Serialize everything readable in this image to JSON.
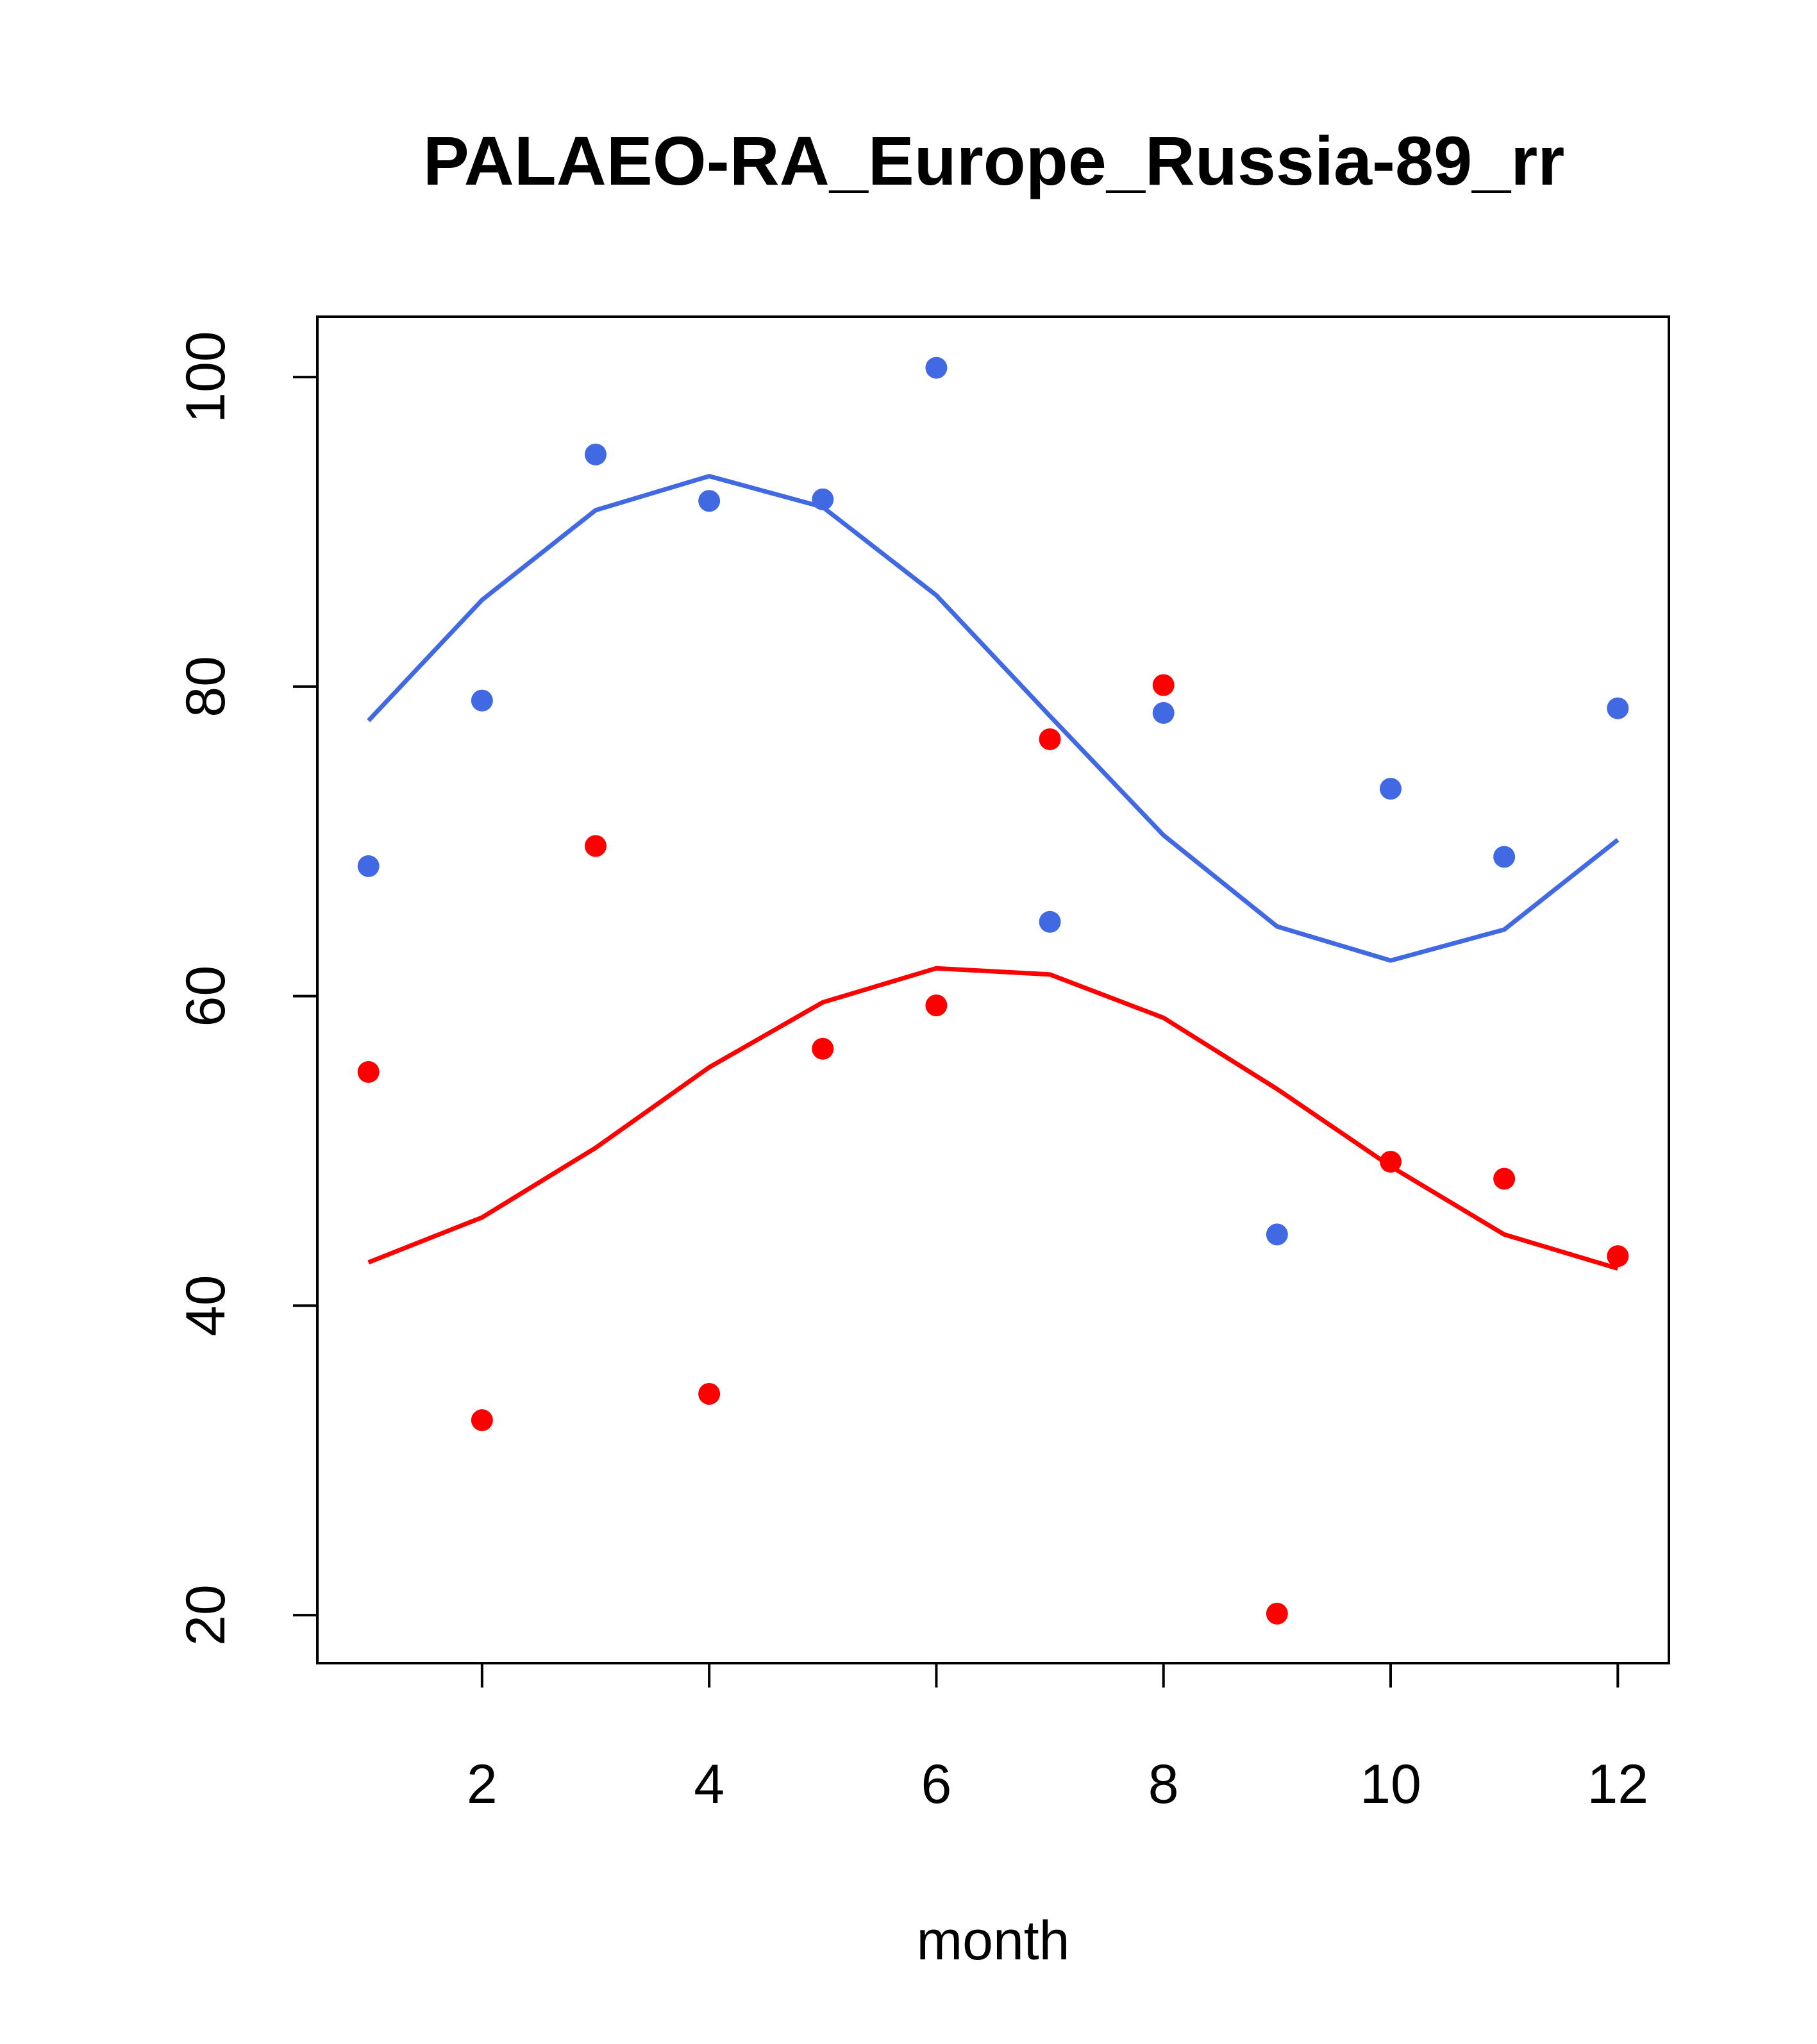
{
  "chart_data": {
    "type": "scatter",
    "title": "PALAEO-RA_Europe_Russia-89_rr",
    "xlabel": "month",
    "ylabel": "",
    "xlim": [
      0.55,
      12.45
    ],
    "ylim": [
      16.9,
      103.9
    ],
    "xticks": [
      2,
      4,
      6,
      8,
      10,
      12
    ],
    "yticks": [
      20,
      40,
      60,
      80,
      100
    ],
    "grid": false,
    "series": [
      {
        "name": "blue points",
        "mark": "point",
        "color": "#4169e1",
        "x": [
          1,
          2,
          3,
          4,
          5,
          6,
          7,
          8,
          9,
          10,
          11,
          12
        ],
        "values": [
          68.4,
          79.1,
          95.0,
          92.0,
          92.1,
          100.6,
          64.8,
          78.3,
          44.6,
          73.4,
          69.0,
          78.6
        ]
      },
      {
        "name": "blue smooth",
        "mark": "line",
        "color": "#4169e1",
        "x": [
          1,
          2,
          3,
          4,
          5,
          6,
          7,
          8,
          9,
          10,
          11,
          12
        ],
        "values": [
          77.8,
          85.6,
          91.4,
          93.6,
          91.6,
          85.9,
          78.1,
          70.4,
          64.5,
          62.3,
          64.3,
          70.1
        ]
      },
      {
        "name": "red points",
        "mark": "point",
        "color": "#ff0000",
        "x": [
          1,
          2,
          3,
          4,
          5,
          6,
          7,
          8,
          9,
          10,
          11,
          12
        ],
        "values": [
          55.1,
          32.6,
          69.7,
          34.3,
          56.6,
          59.4,
          76.6,
          80.1,
          20.1,
          49.3,
          48.2,
          43.2
        ]
      },
      {
        "name": "red smooth",
        "mark": "line",
        "color": "#ff0000",
        "x": [
          1,
          2,
          3,
          4,
          5,
          6,
          7,
          8,
          9,
          10,
          11,
          12
        ],
        "values": [
          42.8,
          45.7,
          50.2,
          55.4,
          59.6,
          61.8,
          61.4,
          58.6,
          54.0,
          49.0,
          44.6,
          42.4
        ]
      }
    ]
  }
}
